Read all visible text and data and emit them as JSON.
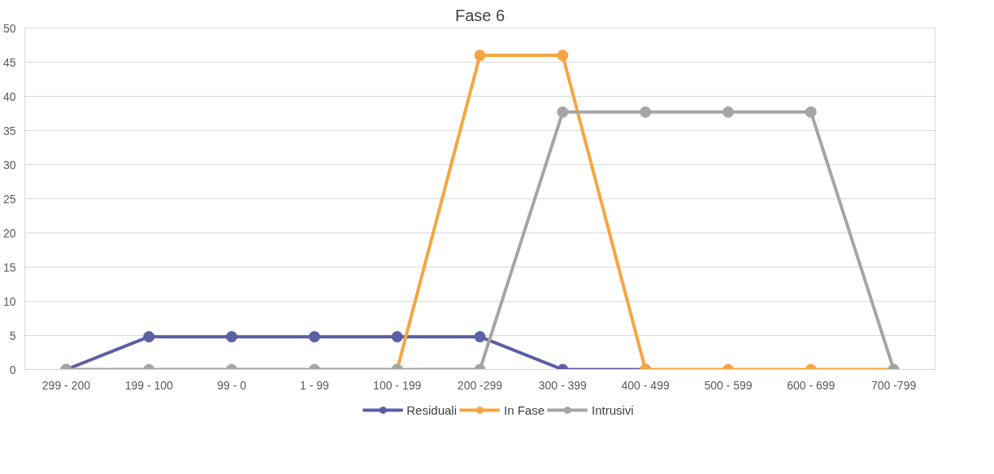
{
  "chart_data": {
    "type": "line",
    "title": "Fase 6",
    "categories": [
      "299 - 200",
      "199 - 100",
      "99 - 0",
      "1 - 99",
      "100 - 199",
      "200 -299",
      "300 - 399",
      "400 - 499",
      "500 - 599",
      "600 - 699",
      "700 -799"
    ],
    "series": [
      {
        "name": "Residuali",
        "color": "#5b5fa3",
        "values": [
          0,
          4.8,
          4.8,
          4.8,
          4.8,
          4.8,
          0,
          0,
          null,
          null,
          null
        ]
      },
      {
        "name": "In Fase",
        "color": "#f7a540",
        "values": [
          null,
          null,
          null,
          null,
          0,
          46,
          46,
          0,
          0,
          0,
          0
        ]
      },
      {
        "name": "Intrusivi",
        "color": "#a5a5a5",
        "values": [
          0,
          0,
          0,
          0,
          0,
          0,
          37.7,
          37.7,
          37.7,
          37.7,
          0
        ]
      }
    ],
    "ylim": [
      0,
      50
    ],
    "yticks": [
      0,
      5,
      10,
      15,
      20,
      25,
      30,
      35,
      40,
      45,
      50
    ],
    "grid": "y",
    "legend": "bottom",
    "marker": "circle",
    "line_style": "solid"
  }
}
